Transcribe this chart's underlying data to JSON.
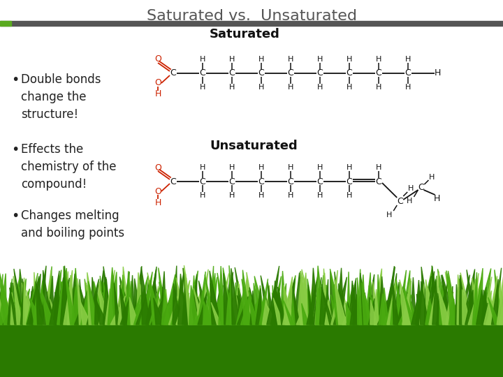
{
  "title": "Saturated vs.  Unsaturated",
  "title_fontsize": 16,
  "title_color": "#555555",
  "background_color": "#ffffff",
  "header_bar_color": "#555555",
  "header_bar_green": "#5aaa20",
  "bullet_points": [
    "Double bonds\nchange the\nstructure!",
    "Effects the\nchemistry of the\ncompound!",
    "Changes melting\nand boiling points"
  ],
  "bullet_fontsize": 12,
  "bullet_color": "#222222",
  "saturated_label": "Saturated",
  "unsaturated_label": "Unsaturated",
  "label_fontsize": 13,
  "label_fontweight": "bold",
  "grass_color_dark": "#2a7a00",
  "grass_color_mid": "#4aaa10",
  "grass_color_light": "#88cc44",
  "red_color": "#cc2200",
  "black_color": "#111111"
}
